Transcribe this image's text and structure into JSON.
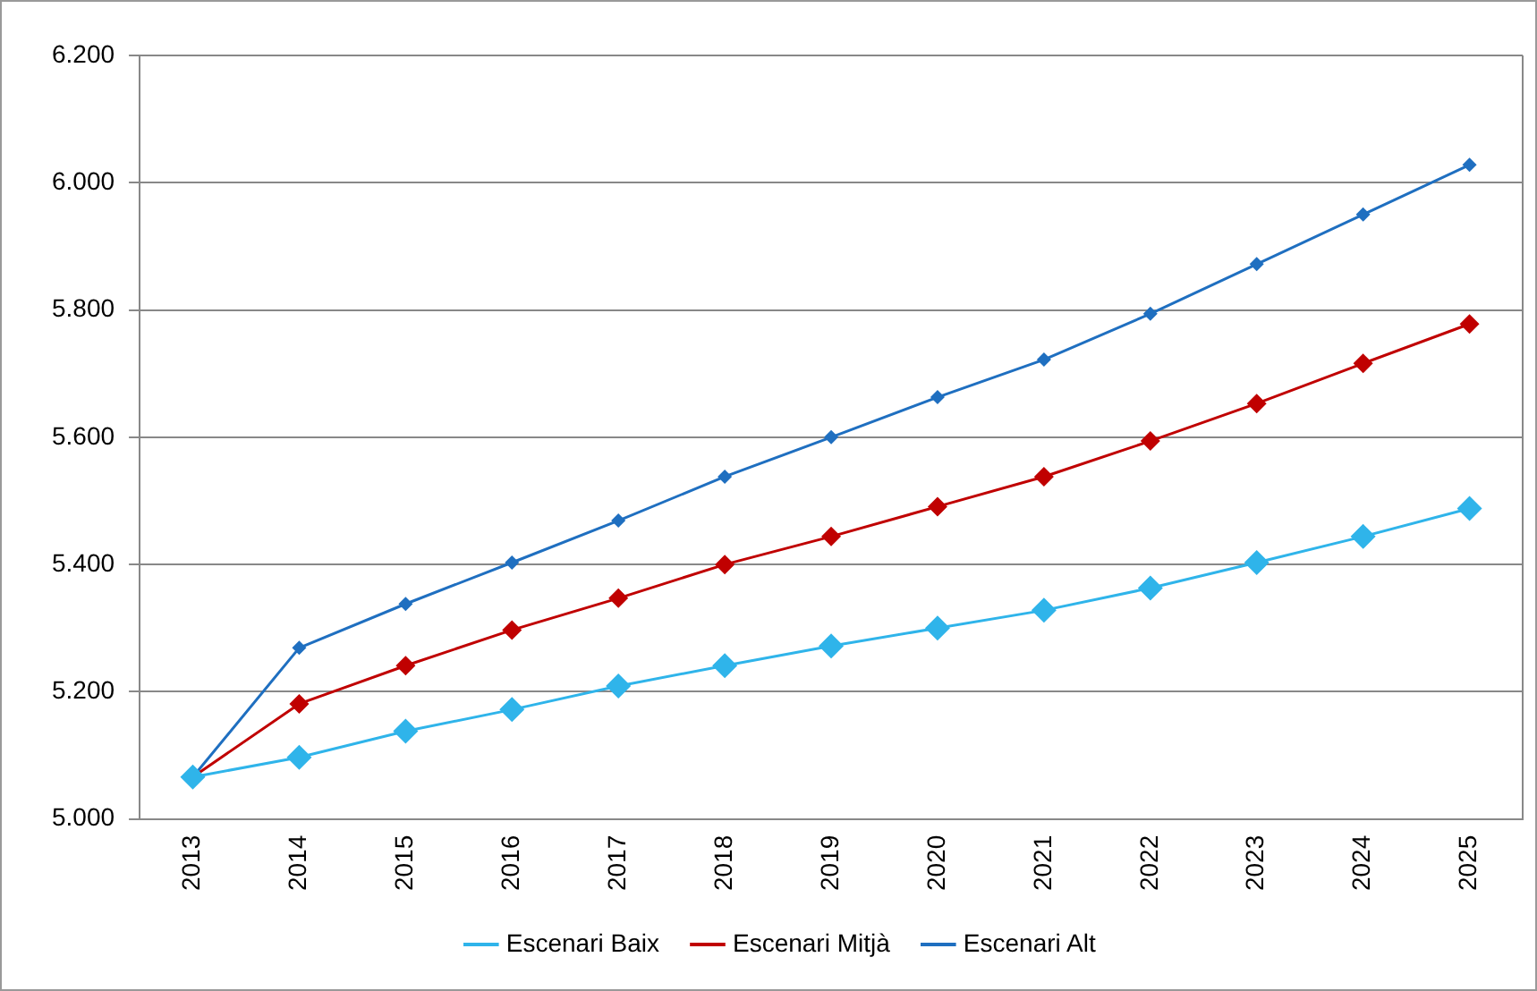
{
  "chart_data": {
    "type": "line",
    "categories": [
      "2013",
      "2014",
      "2015",
      "2016",
      "2017",
      "2018",
      "2019",
      "2020",
      "2021",
      "2022",
      "2023",
      "2024",
      "2025"
    ],
    "series": [
      {
        "name": "Escenari Baix",
        "color": "#2fb4ea",
        "values": [
          5.066,
          5.097,
          5.138,
          5.172,
          5.209,
          5.241,
          5.272,
          5.3,
          5.328,
          5.363,
          5.403,
          5.444,
          5.488
        ]
      },
      {
        "name": "Escenari Mitjà",
        "color": "#c00000",
        "values": [
          5.066,
          5.181,
          5.241,
          5.297,
          5.347,
          5.4,
          5.444,
          5.491,
          5.538,
          5.594,
          5.653,
          5.716,
          5.778
        ]
      },
      {
        "name": "Escenari Alt",
        "color": "#1f6fc0",
        "values": [
          5.066,
          5.269,
          5.338,
          5.403,
          5.469,
          5.538,
          5.6,
          5.663,
          5.722,
          5.794,
          5.872,
          5.95,
          6.028
        ]
      }
    ],
    "ylim": [
      5,
      6.2
    ],
    "yticks": [
      {
        "value": 5,
        "label": "5.000"
      },
      {
        "value": 5.2,
        "label": "5.200"
      },
      {
        "value": 5.4,
        "label": "5.400"
      },
      {
        "value": 5.6,
        "label": "5.600"
      },
      {
        "value": 5.8,
        "label": "5.800"
      },
      {
        "value": 6,
        "label": "6.000"
      },
      {
        "value": 6.2,
        "label": "6.200"
      }
    ],
    "grid": "y",
    "legend": "bottom",
    "marker": "diamond",
    "line_style": "solid"
  }
}
